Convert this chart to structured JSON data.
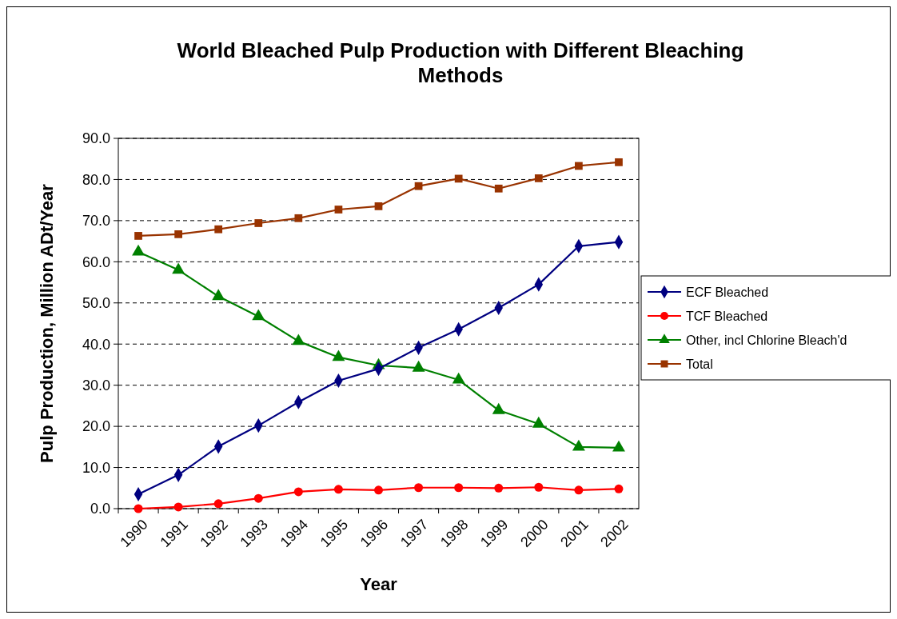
{
  "chart_data": {
    "type": "line",
    "title": "World Bleached Pulp Production with Different Bleaching Methods",
    "xlabel": "Year",
    "ylabel": "Pulp Production, Million ADt/Year",
    "categories": [
      "1990",
      "1991",
      "1992",
      "1993",
      "1994",
      "1995",
      "1996",
      "1997",
      "1998",
      "1999",
      "2000",
      "2001",
      "2002"
    ],
    "series": [
      {
        "name": "ECF Bleached",
        "color": "#000080",
        "marker": "diamond",
        "values": [
          3.5,
          8.2,
          15.1,
          20.2,
          25.9,
          31.1,
          34.0,
          39.1,
          43.6,
          48.8,
          54.5,
          63.8,
          64.8
        ]
      },
      {
        "name": "TCF Bleached",
        "color": "#ff0000",
        "marker": "circle",
        "values": [
          0.0,
          0.4,
          1.2,
          2.5,
          4.1,
          4.7,
          4.5,
          5.1,
          5.1,
          5.0,
          5.2,
          4.5,
          4.8
        ]
      },
      {
        "name": "Other, incl Chlorine Bleach'd",
        "color": "#008000",
        "marker": "triangle",
        "values": [
          62.4,
          58.0,
          51.6,
          46.7,
          40.7,
          36.8,
          34.8,
          34.2,
          31.3,
          23.9,
          20.6,
          15.0,
          14.8
        ]
      },
      {
        "name": "Total",
        "color": "#993300",
        "marker": "square",
        "values": [
          66.3,
          66.7,
          67.9,
          69.4,
          70.6,
          72.7,
          73.5,
          78.4,
          80.2,
          77.8,
          80.3,
          83.3,
          84.2
        ]
      }
    ],
    "ylim": [
      0,
      90
    ],
    "yticks": [
      {
        "value": 0,
        "label": "0.0"
      },
      {
        "value": 10,
        "label": "10.0"
      },
      {
        "value": 20,
        "label": "20.0"
      },
      {
        "value": 30,
        "label": "30.0"
      },
      {
        "value": 40,
        "label": "40.0"
      },
      {
        "value": 50,
        "label": "50.0"
      },
      {
        "value": 60,
        "label": "60.0"
      },
      {
        "value": 70,
        "label": "70.0"
      },
      {
        "value": 80,
        "label": "80.0"
      },
      {
        "value": 90,
        "label": "90.0"
      }
    ],
    "grid": "y",
    "legend": "right",
    "line_style": "solid"
  }
}
